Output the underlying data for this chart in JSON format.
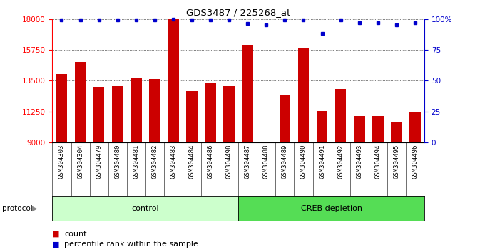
{
  "title": "GDS3487 / 225268_at",
  "samples": [
    "GSM304303",
    "GSM304304",
    "GSM304479",
    "GSM304480",
    "GSM304481",
    "GSM304482",
    "GSM304483",
    "GSM304484",
    "GSM304486",
    "GSM304498",
    "GSM304487",
    "GSM304488",
    "GSM304489",
    "GSM304490",
    "GSM304491",
    "GSM304492",
    "GSM304493",
    "GSM304494",
    "GSM304495",
    "GSM304496"
  ],
  "bar_values": [
    14000,
    14850,
    13050,
    13100,
    13700,
    13600,
    18000,
    12750,
    13300,
    13100,
    16100,
    9050,
    12500,
    15850,
    11300,
    12900,
    10900,
    10900,
    10450,
    11250
  ],
  "percentile_values": [
    99,
    99,
    99,
    99,
    99,
    99,
    100,
    99,
    99,
    99,
    96,
    95,
    99,
    99,
    88,
    99,
    97,
    97,
    95,
    97
  ],
  "n_control": 10,
  "n_creb": 10,
  "ylim_left": [
    9000,
    18000
  ],
  "yticks_left": [
    9000,
    11250,
    13500,
    15750,
    18000
  ],
  "ytick_labels_left": [
    "9000",
    "11250",
    "13500",
    "15750",
    "18000"
  ],
  "ylim_right": [
    0,
    100
  ],
  "yticks_right": [
    0,
    25,
    50,
    75,
    100
  ],
  "ytick_labels_right": [
    "0",
    "25",
    "50",
    "75",
    "100%"
  ],
  "bar_color": "#cc0000",
  "dot_color": "#0000cc",
  "bar_width": 0.6,
  "control_bg": "#ccffcc",
  "creb_bg": "#55dd55",
  "xlabel_area_bg": "#c8c8c8",
  "title_fontsize": 9.5,
  "tick_fontsize": 7.5,
  "label_fontsize": 6.5
}
